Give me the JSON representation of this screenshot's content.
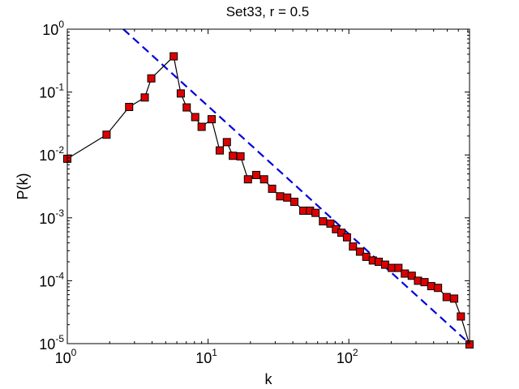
{
  "chart_data": {
    "type": "scatter",
    "title": "Set33, r = 0.5",
    "xlabel": "k",
    "ylabel": "P(k)",
    "xscale": "log",
    "yscale": "log",
    "xlim": [
      1,
      720
    ],
    "ylim": [
      1e-05,
      1
    ],
    "grid": false,
    "legend": "none",
    "x_ticks": [
      {
        "value": 1,
        "base": "10",
        "exp": "0"
      },
      {
        "value": 10,
        "base": "10",
        "exp": "1"
      },
      {
        "value": 100,
        "base": "10",
        "exp": "2"
      }
    ],
    "y_ticks": [
      {
        "value": 1,
        "base": "10",
        "exp": "0"
      },
      {
        "value": 0.1,
        "base": "10",
        "exp": "-1"
      },
      {
        "value": 0.01,
        "base": "10",
        "exp": "-2"
      },
      {
        "value": 0.001,
        "base": "10",
        "exp": "-3"
      },
      {
        "value": 0.0001,
        "base": "10",
        "exp": "-4"
      },
      {
        "value": 1e-05,
        "base": "10",
        "exp": "-5"
      }
    ],
    "series": [
      {
        "type": "line-marker",
        "color": "#000000",
        "marker_face": "#dd0000",
        "marker_edge": "#000000",
        "x": [
          1,
          1.9,
          2.75,
          3.55,
          3.95,
          5.7,
          6.4,
          7.05,
          8.1,
          9.0,
          10.6,
          12.1,
          13.6,
          15.0,
          17.0,
          19.2,
          22.0,
          25.0,
          28.5,
          32.5,
          36.5,
          41.0,
          47.5,
          53.0,
          58.0,
          65.5,
          74.0,
          81.0,
          88.5,
          97.0,
          107,
          120,
          133,
          148,
          163,
          181,
          202,
          225,
          250,
          280,
          310,
          345,
          385,
          430,
          495,
          560,
          625,
          720
        ],
        "y": [
          0.0087,
          0.021,
          0.058,
          0.082,
          0.165,
          0.37,
          0.095,
          0.057,
          0.04,
          0.028,
          0.037,
          0.0118,
          0.016,
          0.0097,
          0.0095,
          0.0041,
          0.0048,
          0.0041,
          0.0029,
          0.0022,
          0.0021,
          0.0018,
          0.0013,
          0.0013,
          0.0012,
          0.00088,
          0.00081,
          0.00066,
          0.00058,
          0.00049,
          0.00035,
          0.00029,
          0.00024,
          0.00021,
          0.0002,
          0.00018,
          0.00016,
          0.00016,
          0.00013,
          0.00012,
          0.0001,
          9.5e-05,
          8.2e-05,
          7.7e-05,
          5.5e-05,
          5.2e-05,
          2.7e-05,
          9.7e-06
        ]
      },
      {
        "type": "fit-line",
        "color": "#0000dd",
        "dash": true,
        "x": [
          2.5,
          720
        ],
        "y": [
          1,
          1e-05
        ]
      }
    ]
  }
}
